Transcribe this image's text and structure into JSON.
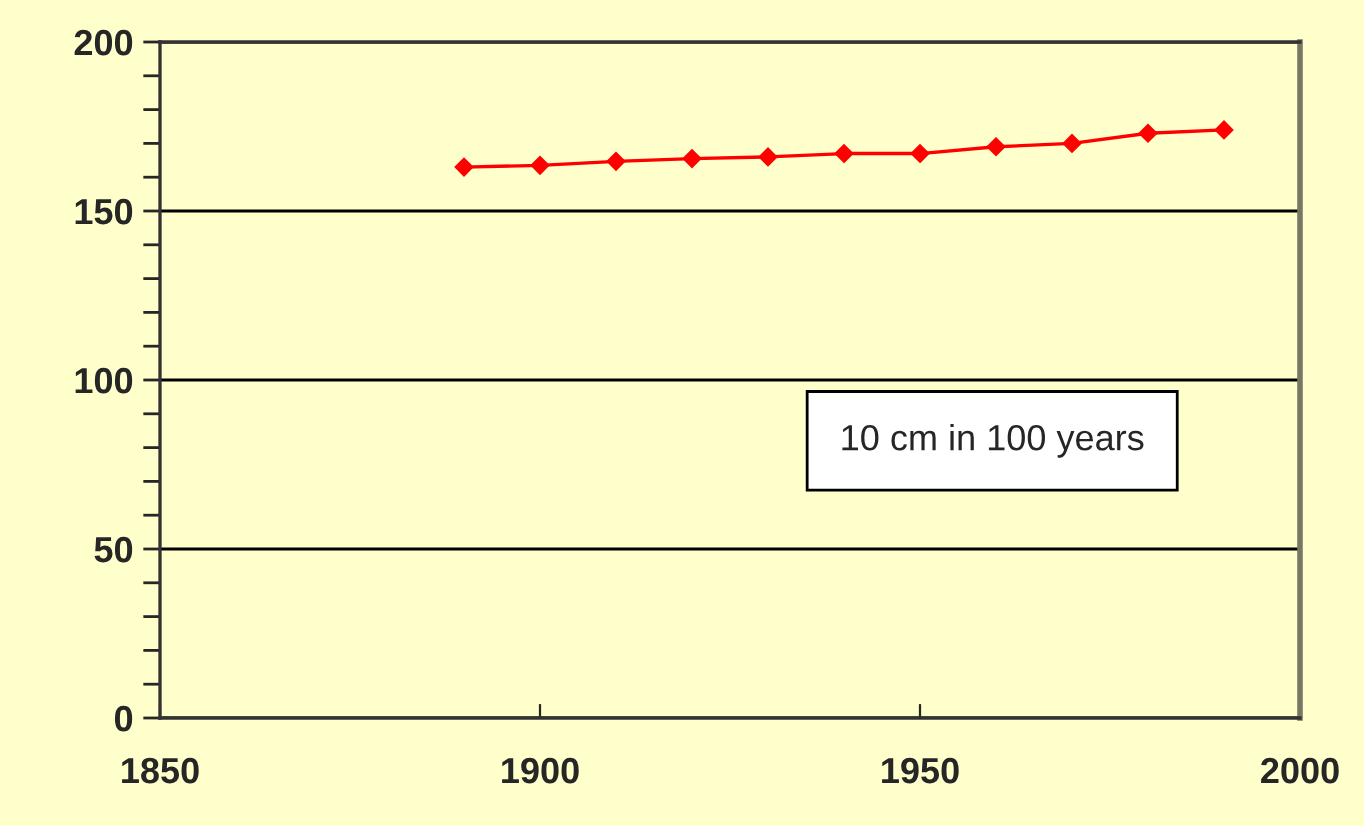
{
  "chart_data": {
    "type": "line",
    "x": [
      1890,
      1900,
      1910,
      1920,
      1930,
      1940,
      1950,
      1960,
      1970,
      1980,
      1990
    ],
    "series": [
      {
        "color": "#ff0000",
        "values": [
          163,
          163.5,
          164.7,
          165.5,
          166,
          167,
          167,
          169,
          170,
          173,
          174
        ]
      }
    ],
    "xlim": [
      1850,
      2000
    ],
    "xticks": [
      1850,
      1900,
      1950,
      2000
    ],
    "ylim": [
      0,
      200
    ],
    "yticks": [
      0,
      50,
      100,
      150,
      200
    ],
    "grid": "y",
    "marker": "diamond",
    "line_style": "solid",
    "legend": false,
    "annotations": [
      "10 cm in 100 years"
    ]
  }
}
